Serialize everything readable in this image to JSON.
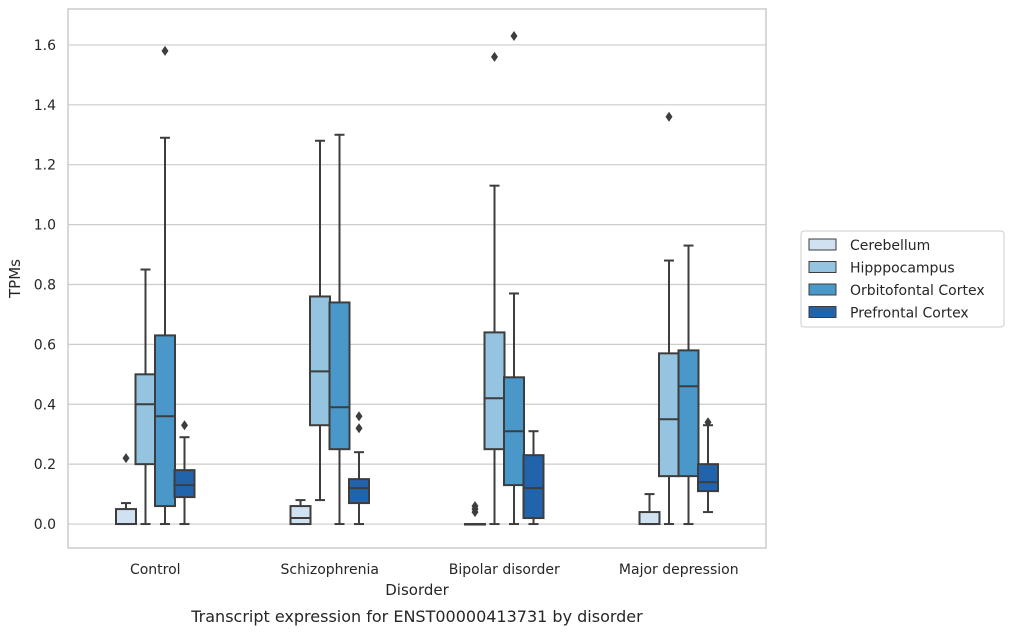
{
  "caption": "Transcript expression for ENST00000413731 by disorder",
  "chart_data": {
    "type": "box",
    "xlabel": "Disorder",
    "ylabel": "TPMs",
    "ylim": [
      -0.08,
      1.72
    ],
    "yticks": [
      0.0,
      0.2,
      0.4,
      0.6,
      0.8,
      1.0,
      1.2,
      1.4,
      1.6
    ],
    "ytick_labels": [
      "0.0",
      "0.2",
      "0.4",
      "0.6",
      "0.8",
      "1.0",
      "1.2",
      "1.4",
      "1.6"
    ],
    "grid": "horizontal",
    "legend_position": "right",
    "categories": [
      "Control",
      "Schizophrenia",
      "Bipolar disorder",
      "Major depression"
    ],
    "series": [
      {
        "name": "Cerebellum",
        "color": "#d0e1f2",
        "boxes": [
          {
            "whislo": 0.0,
            "q1": 0.0,
            "med": 0.0,
            "q3": 0.05,
            "whishi": 0.07,
            "fliers": [
              0.22
            ]
          },
          {
            "whislo": 0.0,
            "q1": 0.0,
            "med": 0.02,
            "q3": 0.06,
            "whishi": 0.08,
            "fliers": []
          },
          {
            "whislo": 0.0,
            "q1": 0.0,
            "med": 0.0,
            "q3": 0.0,
            "whishi": 0.0,
            "fliers": [
              0.04,
              0.05,
              0.06
            ]
          },
          {
            "whislo": 0.0,
            "q1": 0.0,
            "med": 0.0,
            "q3": 0.04,
            "whishi": 0.1,
            "fliers": []
          }
        ]
      },
      {
        "name": "Hipppocampus",
        "color": "#94c4df",
        "boxes": [
          {
            "whislo": 0.0,
            "q1": 0.2,
            "med": 0.4,
            "q3": 0.5,
            "whishi": 0.85,
            "fliers": []
          },
          {
            "whislo": 0.08,
            "q1": 0.33,
            "med": 0.51,
            "q3": 0.76,
            "whishi": 1.28,
            "fliers": []
          },
          {
            "whislo": 0.0,
            "q1": 0.25,
            "med": 0.42,
            "q3": 0.64,
            "whishi": 1.13,
            "fliers": [
              1.56
            ]
          },
          {
            "whislo": 0.0,
            "q1": 0.16,
            "med": 0.35,
            "q3": 0.57,
            "whishi": 0.88,
            "fliers": [
              1.36
            ]
          }
        ]
      },
      {
        "name": "Orbitofontal Cortex",
        "color": "#4a98c9",
        "boxes": [
          {
            "whislo": 0.0,
            "q1": 0.06,
            "med": 0.36,
            "q3": 0.63,
            "whishi": 1.29,
            "fliers": [
              1.58
            ]
          },
          {
            "whislo": 0.0,
            "q1": 0.25,
            "med": 0.39,
            "q3": 0.74,
            "whishi": 1.3,
            "fliers": []
          },
          {
            "whislo": 0.0,
            "q1": 0.13,
            "med": 0.31,
            "q3": 0.49,
            "whishi": 0.77,
            "fliers": [
              1.63
            ]
          },
          {
            "whislo": 0.0,
            "q1": 0.16,
            "med": 0.46,
            "q3": 0.58,
            "whishi": 0.93,
            "fliers": []
          }
        ]
      },
      {
        "name": "Prefrontal Cortex",
        "color": "#2164ab",
        "boxes": [
          {
            "whislo": 0.0,
            "q1": 0.09,
            "med": 0.13,
            "q3": 0.18,
            "whishi": 0.29,
            "fliers": [
              0.33
            ]
          },
          {
            "whislo": 0.0,
            "q1": 0.07,
            "med": 0.12,
            "q3": 0.15,
            "whishi": 0.24,
            "fliers": [
              0.32,
              0.36
            ]
          },
          {
            "whislo": 0.0,
            "q1": 0.02,
            "med": 0.12,
            "q3": 0.23,
            "whishi": 0.31,
            "fliers": []
          },
          {
            "whislo": 0.04,
            "q1": 0.11,
            "med": 0.14,
            "q3": 0.2,
            "whishi": 0.33,
            "fliers": [
              0.34
            ]
          }
        ]
      }
    ]
  }
}
